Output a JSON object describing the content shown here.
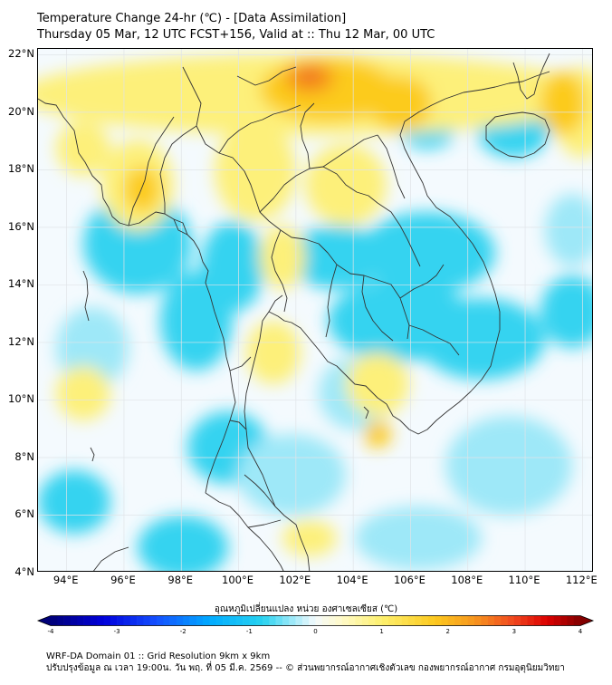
{
  "header": {
    "line1": "Temperature Change 24-hr (℃) - [Data Assimilation]",
    "line2": "Thursday 05 Mar, 12 UTC FCST+156, Valid at :: Thu 12 Mar, 00 UTC"
  },
  "map": {
    "lat_labels": [
      "22°N",
      "20°N",
      "18°N",
      "16°N",
      "14°N",
      "12°N",
      "10°N",
      "8°N",
      "6°N",
      "4°N"
    ],
    "lon_labels": [
      "94°E",
      "96°E",
      "98°E",
      "100°E",
      "102°E",
      "104°E",
      "106°E",
      "108°E",
      "110°E",
      "112°E"
    ],
    "lat_range": [
      4,
      22.2
    ],
    "lon_range": [
      93,
      112.4
    ],
    "colors": {
      "base": "#f4fafe",
      "cold": "#34d3f0",
      "cool": "#9ee8f8",
      "warm": "#fdf07a",
      "hot": "#fccb1c",
      "hotter": "#f79a1c",
      "hottest": "#ef6a22"
    }
  },
  "colorbar": {
    "label": "อุณหภูมิเปลี่ยนแปลง หน่วย องศาเซลเซียส (℃)",
    "ticks": [
      "-4",
      "-3",
      "-2",
      "-1",
      "0",
      "1",
      "2",
      "3",
      "4"
    ],
    "range": [
      -4,
      4
    ]
  },
  "footer": {
    "line1": "WRF-DA Domain 01 :: Grid Resolution 9km x 9km",
    "line2": "ปรับปรุงข้อมูล ณ เวลา 19:00น. วัน พฤ. ที่ 05 มี.ค. 2569 -- © ส่วนพยากรณ์อากาศเชิงตัวเลข กองพยากรณ์อากาศ กรมอุตุนิยมวิทยา"
  }
}
